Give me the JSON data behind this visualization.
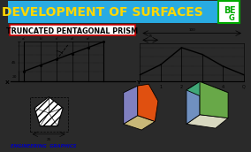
{
  "title": "DEVELOPMENT OF SURFACES",
  "title_bg": "#29ABE2",
  "title_color": "#FFD700",
  "subtitle": "TRUNCATED PENTAGONAL PRISM",
  "subtitle_box_color": "#CC0000",
  "bg_color": "#F0F0F0",
  "logo_color": "#00AA00",
  "footer_text": "ENGINEERING  GRAPHICS",
  "footer_color": "#0000BB",
  "outer_bg": "#2a2a2a"
}
